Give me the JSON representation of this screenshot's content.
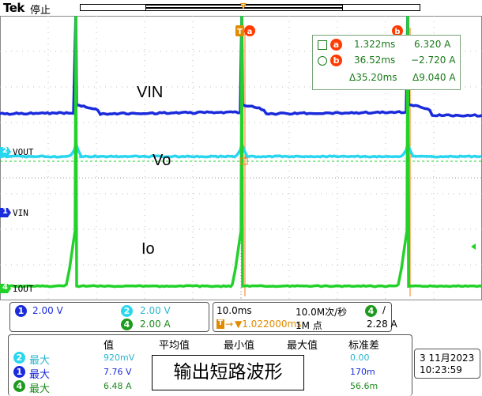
{
  "app": {
    "brand": "Tek",
    "status": "停止"
  },
  "channels": {
    "ch1": {
      "marker": "1",
      "name": "VIN",
      "color": "#1a2bdc"
    },
    "ch2": {
      "marker": "2",
      "name": "VOUT",
      "color": "#29d6f0"
    },
    "ch4": {
      "marker": "4",
      "name": "IOUT",
      "color": "#22d22a"
    }
  },
  "cursors": {
    "a_label": "a",
    "b_label": "b",
    "trigger_label": "T"
  },
  "measurement_box": {
    "row_a": {
      "time": "1.322ms",
      "value": "6.320 A"
    },
    "row_b": {
      "time": "36.52ms",
      "value": "−2.720 A"
    },
    "delta": {
      "time": "Δ35.20ms",
      "value": "Δ9.040 A"
    }
  },
  "trace_labels": {
    "vin": "VIN",
    "vo": "Vo",
    "io": "Io"
  },
  "settings": {
    "ch1_scale": "2.00 V",
    "ch2_scale": "2.00 V",
    "ch4_scale": "2.00 A",
    "timebase": "10.0ms",
    "sample_rate": "10.0M次/秒",
    "trigger_delay": "▼1.022000ms",
    "record_length": "1M 点",
    "trigger_channel": "4",
    "trigger_slope": "/",
    "trigger_level": "2.28 A"
  },
  "stats": {
    "headers": {
      "value": "值",
      "mean": "平均值",
      "min": "最小值",
      "max": "最大值",
      "std": "标准差"
    },
    "rows": [
      {
        "ch": "2",
        "label": "最大",
        "value": "920mV",
        "std": "0.00"
      },
      {
        "ch": "1",
        "label": "最大",
        "value": "7.76 V",
        "std": "170m"
      },
      {
        "ch": "4",
        "label": "最大",
        "value": "6.48 A",
        "std": "56.6m"
      }
    ]
  },
  "caption": "输出短路波形",
  "datetime": {
    "date": "3 11月2023",
    "time": "10:23:59"
  }
}
